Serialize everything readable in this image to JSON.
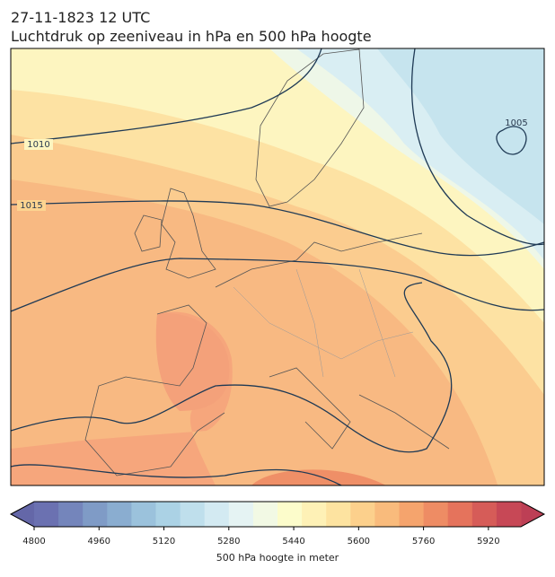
{
  "map": {
    "title": "27-11-1823 12 UTC",
    "subtitle": "Luchtdruk op zeeniveau in hPa en 500 hPa hoogte",
    "contour_labels": [
      1010,
      1015,
      1005
    ],
    "colorbar": {
      "lim": [
        4800,
        6000
      ],
      "ticks": [
        4800,
        4960,
        5120,
        5280,
        5440,
        5600,
        5760,
        5920
      ],
      "colors": [
        "#6b71b1",
        "#7485bb",
        "#7f9bc6",
        "#8aadd0",
        "#9bc2dc",
        "#abd2e5",
        "#bfdfec",
        "#d3eaf2",
        "#e5f3f3",
        "#f2f9e4",
        "#fcfccb",
        "#fef1b6",
        "#fde3a0",
        "#fcd08c",
        "#f9bb7c",
        "#f5a46d",
        "#ee8c64",
        "#e5735c",
        "#d65c58",
        "#c74856"
      ],
      "under_color": "#6467a8",
      "over_color": "#bd3f55",
      "label": "500 hPa hoogte in meter"
    }
  }
}
